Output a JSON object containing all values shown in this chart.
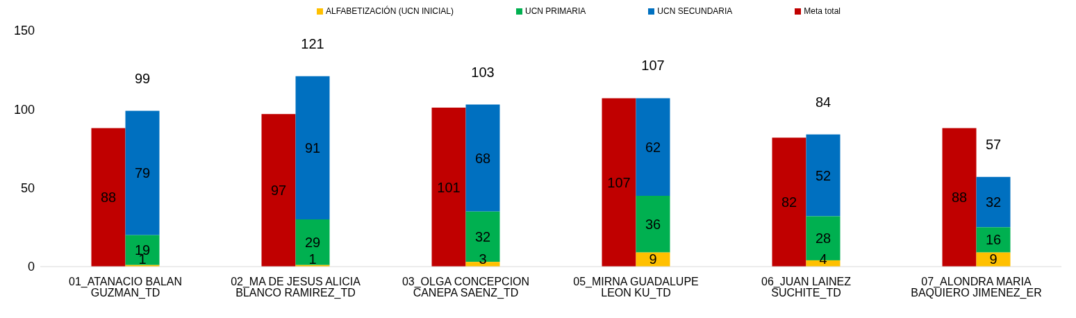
{
  "chart_data": {
    "type": "bar",
    "categories": [
      "01_ATANACIO BALAN GUZMAN_TD",
      "02_MA DE JESUS ALICIA BLANCO RAMIREZ_TD",
      "03_OLGA CONCEPCION CANEPA SAENZ_TD",
      "05_MIRNA GUADALUPE LEON KU_TD",
      "06_JUAN LAINEZ SUCHITE_TD",
      "07_ALONDRA MARIA BAQUIERO JIMENEZ_ER"
    ],
    "series": [
      {
        "name": "ALFABETIZACIÓN (UCN INICIAL)",
        "color": "#ffc000",
        "values": [
          1,
          1,
          3,
          9,
          4,
          9
        ],
        "base": [
          0,
          0,
          0,
          0,
          0,
          0
        ]
      },
      {
        "name": "UCN PRIMARIA",
        "color": "#00b050",
        "values": [
          19,
          29,
          32,
          36,
          28,
          16
        ],
        "base": [
          1,
          1,
          3,
          9,
          4,
          9
        ]
      },
      {
        "name": "UCN SECUNDARIA",
        "color": "#0070c0",
        "values": [
          79,
          91,
          68,
          62,
          52,
          32
        ],
        "base": [
          20,
          30,
          35,
          45,
          32,
          25
        ]
      },
      {
        "name": "Meta total",
        "color": "#c00000",
        "values": [
          88,
          97,
          101,
          107,
          82,
          88
        ]
      }
    ],
    "annotations": [
      {
        "text": "99",
        "x": "01_ATANACIO BALAN GUZMAN_TD",
        "y": 99
      },
      {
        "text": "121",
        "x": "02_MA DE JESUS ALICIA BLANCO RAMIREZ_TD",
        "y": 121
      },
      {
        "text": "103",
        "x": "03_OLGA CONCEPCION CANEPA SAENZ_TD",
        "y": 103
      },
      {
        "text": "107",
        "x": "05_MIRNA GUADALUPE LEON KU_TD",
        "y": 107
      },
      {
        "text": "84",
        "x": "06_JUAN LAINEZ SUCHITE_TD",
        "y": 84
      },
      {
        "text": "57",
        "x": "07_ALONDRA MARIA BAQUIERO JIMENEZ_ER",
        "y": 57
      }
    ],
    "data_labels": true,
    "ylim": [
      0,
      150
    ],
    "yticks": [
      0,
      50,
      100,
      150
    ],
    "grid": false,
    "legend": "top"
  }
}
